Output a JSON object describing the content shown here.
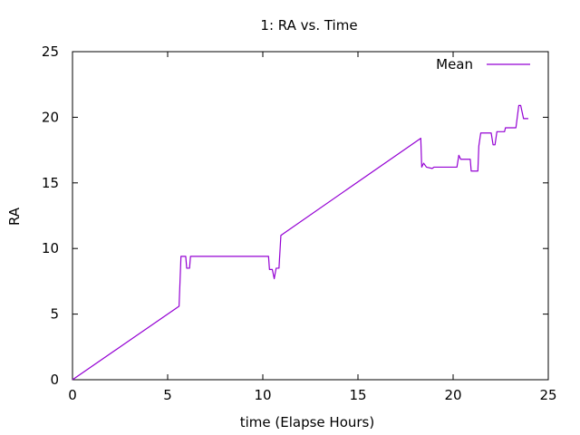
{
  "chart_data": {
    "type": "line",
    "title": "1: RA vs. Time",
    "xlabel": "time (Elapse Hours)",
    "ylabel": "RA",
    "xlim": [
      0,
      25
    ],
    "ylim": [
      0,
      25
    ],
    "xticks": [
      "0",
      "5",
      "10",
      "15",
      "20",
      "25"
    ],
    "yticks": [
      "0",
      "5",
      "10",
      "15",
      "20",
      "25"
    ],
    "grid": false,
    "legend_position": "top-right",
    "series": [
      {
        "name": "Mean",
        "color": "#9400d3",
        "points": [
          [
            0.0,
            0.0
          ],
          [
            5.5,
            5.5
          ],
          [
            5.6,
            5.6
          ],
          [
            5.65,
            7.5
          ],
          [
            5.7,
            9.4
          ],
          [
            5.95,
            9.4
          ],
          [
            6.0,
            8.5
          ],
          [
            6.15,
            8.5
          ],
          [
            6.2,
            9.4
          ],
          [
            10.3,
            9.4
          ],
          [
            10.35,
            8.4
          ],
          [
            10.5,
            8.4
          ],
          [
            10.6,
            7.7
          ],
          [
            10.7,
            8.5
          ],
          [
            10.85,
            8.5
          ],
          [
            10.95,
            11.0
          ],
          [
            18.3,
            18.4
          ],
          [
            18.35,
            16.2
          ],
          [
            18.45,
            16.5
          ],
          [
            18.6,
            16.2
          ],
          [
            18.9,
            16.1
          ],
          [
            19.0,
            16.2
          ],
          [
            20.2,
            16.2
          ],
          [
            20.3,
            17.1
          ],
          [
            20.4,
            16.8
          ],
          [
            20.9,
            16.8
          ],
          [
            20.95,
            15.9
          ],
          [
            21.3,
            15.9
          ],
          [
            21.35,
            17.8
          ],
          [
            21.45,
            18.8
          ],
          [
            22.0,
            18.8
          ],
          [
            22.1,
            17.9
          ],
          [
            22.2,
            17.9
          ],
          [
            22.3,
            18.9
          ],
          [
            22.7,
            18.9
          ],
          [
            22.75,
            19.2
          ],
          [
            23.3,
            19.2
          ],
          [
            23.45,
            20.9
          ],
          [
            23.55,
            20.9
          ],
          [
            23.7,
            19.9
          ],
          [
            23.95,
            19.9
          ]
        ]
      }
    ]
  }
}
